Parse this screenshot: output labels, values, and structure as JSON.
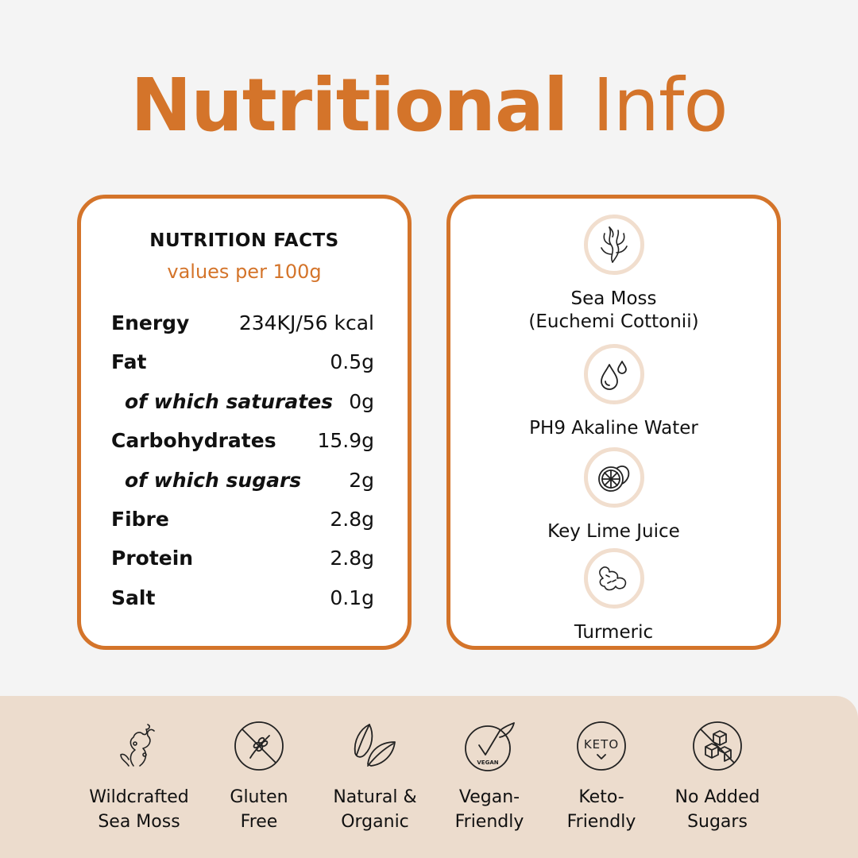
{
  "title": {
    "bold": "Nutritional",
    "light": "Info"
  },
  "nutrition": {
    "heading": "NUTRITION FACTS",
    "subheading": "values per 100g",
    "rows": [
      {
        "name": "Energy",
        "value": "234KJ/56 kcal"
      },
      {
        "name": "Fat",
        "value": "0.5g"
      },
      {
        "name": "of which saturates",
        "value": "0g"
      },
      {
        "name": "Carbohydrates",
        "value": "15.9g"
      },
      {
        "name": "of which sugars",
        "value": "2g"
      },
      {
        "name": "Fibre",
        "value": "2.8g"
      },
      {
        "name": "Protein",
        "value": "2.8g"
      },
      {
        "name": "Salt",
        "value": "0.1g"
      }
    ]
  },
  "ingredients": [
    {
      "icon": "seaweed-icon",
      "line1": "Sea Moss",
      "line2": "(Euchemi Cottonii)"
    },
    {
      "icon": "water-drops-icon",
      "line1": "PH9 Akaline Water"
    },
    {
      "icon": "lime-icon",
      "line1": "Key Lime Juice"
    },
    {
      "icon": "turmeric-root-icon",
      "line1": "Turmeric"
    }
  ],
  "badges": [
    {
      "icon": "sea-moss-icon",
      "line1": "Wildcrafted",
      "line2": "Sea Moss"
    },
    {
      "icon": "no-gluten-icon",
      "line1": "Gluten",
      "line2": "Free"
    },
    {
      "icon": "leaves-icon",
      "line1": "Natural &",
      "line2": "Organic"
    },
    {
      "icon": "vegan-badge-icon",
      "icon_text": "VEGAN",
      "line1": "Vegan-",
      "line2": "Friendly"
    },
    {
      "icon": "keto-badge-icon",
      "icon_text": "KETO",
      "line1": "Keto-",
      "line2": "Friendly"
    },
    {
      "icon": "no-sugar-cubes-icon",
      "line1": "No Added",
      "line2": "Sugars"
    }
  ],
  "colors": {
    "accent": "#d4742a",
    "band": "#ecdccd",
    "icon_ring": "#f1dece"
  }
}
